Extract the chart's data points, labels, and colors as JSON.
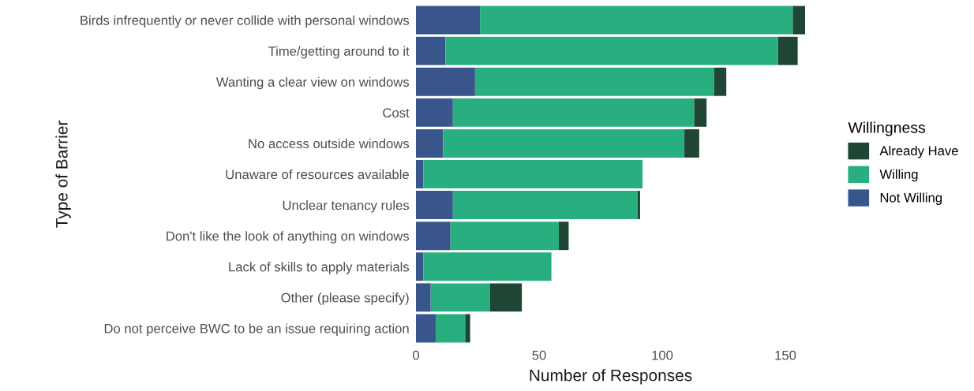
{
  "chart_data": {
    "type": "bar",
    "orientation": "horizontal",
    "stacked": true,
    "xlabel": "Number of Responses",
    "ylabel": "Type of Barrier",
    "legend_title": "Willingness",
    "categories": [
      "Birds infrequently or never collide with personal windows",
      "Time/getting around to it",
      "Wanting a clear view on windows",
      "Cost",
      "No access outside windows",
      "Unaware of resources available",
      "Unclear tenancy rules",
      "Don't like the look of anything on windows",
      "Lack of skills to apply materials",
      "Other (please specify)",
      "Do not perceive BWC to be an issue requiring action"
    ],
    "series": [
      {
        "name": "Not Willing",
        "color": "#39568c",
        "values": [
          26,
          12,
          24,
          15,
          11,
          3,
          15,
          14,
          3,
          6,
          8
        ]
      },
      {
        "name": "Willing",
        "color": "#29af7f",
        "values": [
          127,
          135,
          97,
          98,
          98,
          89,
          75,
          44,
          52,
          24,
          12
        ]
      },
      {
        "name": "Already Have",
        "color": "#1d4634",
        "values": [
          5,
          8,
          5,
          5,
          6,
          0,
          1,
          4,
          0,
          13,
          2
        ]
      }
    ],
    "xlim": [
      0,
      158
    ],
    "xticks": [
      0,
      50,
      100,
      150
    ],
    "grid": false,
    "legend": "right"
  }
}
